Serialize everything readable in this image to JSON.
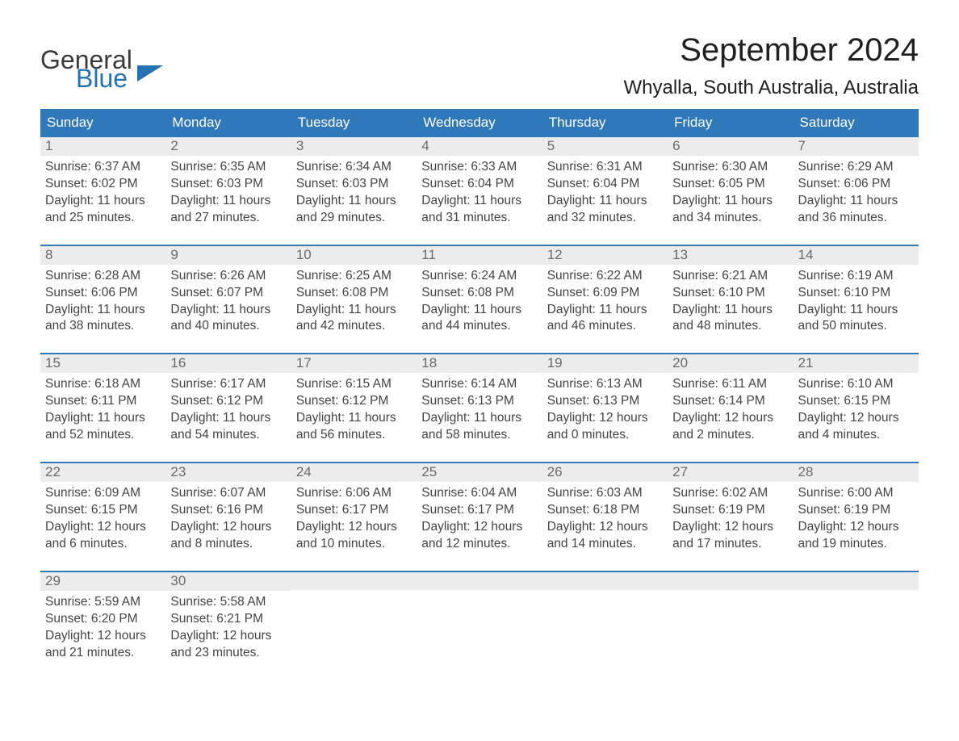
{
  "brand": {
    "name1": "General",
    "name2": "Blue",
    "color_dark": "#3a3a3a",
    "color_blue": "#2572b5"
  },
  "title": "September 2024",
  "location": "Whyalla, South Australia, Australia",
  "colors": {
    "header_bg": "#2f78ba",
    "header_text": "#ffffff",
    "daynum_bg": "#ececec",
    "daynum_text": "#6a6a6a",
    "border_top": "#2f78ba",
    "body_text": "#444444",
    "page_bg": "#ffffff"
  },
  "fonts": {
    "title_size": 40,
    "location_size": 24,
    "dayheader_size": 17,
    "daynum_size": 17,
    "body_size": 15.5
  },
  "day_labels": [
    "Sunday",
    "Monday",
    "Tuesday",
    "Wednesday",
    "Thursday",
    "Friday",
    "Saturday"
  ],
  "weeks": [
    [
      {
        "n": "1",
        "sr": "Sunrise: 6:37 AM",
        "ss": "Sunset: 6:02 PM",
        "d1": "Daylight: 11 hours",
        "d2": "and 25 minutes."
      },
      {
        "n": "2",
        "sr": "Sunrise: 6:35 AM",
        "ss": "Sunset: 6:03 PM",
        "d1": "Daylight: 11 hours",
        "d2": "and 27 minutes."
      },
      {
        "n": "3",
        "sr": "Sunrise: 6:34 AM",
        "ss": "Sunset: 6:03 PM",
        "d1": "Daylight: 11 hours",
        "d2": "and 29 minutes."
      },
      {
        "n": "4",
        "sr": "Sunrise: 6:33 AM",
        "ss": "Sunset: 6:04 PM",
        "d1": "Daylight: 11 hours",
        "d2": "and 31 minutes."
      },
      {
        "n": "5",
        "sr": "Sunrise: 6:31 AM",
        "ss": "Sunset: 6:04 PM",
        "d1": "Daylight: 11 hours",
        "d2": "and 32 minutes."
      },
      {
        "n": "6",
        "sr": "Sunrise: 6:30 AM",
        "ss": "Sunset: 6:05 PM",
        "d1": "Daylight: 11 hours",
        "d2": "and 34 minutes."
      },
      {
        "n": "7",
        "sr": "Sunrise: 6:29 AM",
        "ss": "Sunset: 6:06 PM",
        "d1": "Daylight: 11 hours",
        "d2": "and 36 minutes."
      }
    ],
    [
      {
        "n": "8",
        "sr": "Sunrise: 6:28 AM",
        "ss": "Sunset: 6:06 PM",
        "d1": "Daylight: 11 hours",
        "d2": "and 38 minutes."
      },
      {
        "n": "9",
        "sr": "Sunrise: 6:26 AM",
        "ss": "Sunset: 6:07 PM",
        "d1": "Daylight: 11 hours",
        "d2": "and 40 minutes."
      },
      {
        "n": "10",
        "sr": "Sunrise: 6:25 AM",
        "ss": "Sunset: 6:08 PM",
        "d1": "Daylight: 11 hours",
        "d2": "and 42 minutes."
      },
      {
        "n": "11",
        "sr": "Sunrise: 6:24 AM",
        "ss": "Sunset: 6:08 PM",
        "d1": "Daylight: 11 hours",
        "d2": "and 44 minutes."
      },
      {
        "n": "12",
        "sr": "Sunrise: 6:22 AM",
        "ss": "Sunset: 6:09 PM",
        "d1": "Daylight: 11 hours",
        "d2": "and 46 minutes."
      },
      {
        "n": "13",
        "sr": "Sunrise: 6:21 AM",
        "ss": "Sunset: 6:10 PM",
        "d1": "Daylight: 11 hours",
        "d2": "and 48 minutes."
      },
      {
        "n": "14",
        "sr": "Sunrise: 6:19 AM",
        "ss": "Sunset: 6:10 PM",
        "d1": "Daylight: 11 hours",
        "d2": "and 50 minutes."
      }
    ],
    [
      {
        "n": "15",
        "sr": "Sunrise: 6:18 AM",
        "ss": "Sunset: 6:11 PM",
        "d1": "Daylight: 11 hours",
        "d2": "and 52 minutes."
      },
      {
        "n": "16",
        "sr": "Sunrise: 6:17 AM",
        "ss": "Sunset: 6:12 PM",
        "d1": "Daylight: 11 hours",
        "d2": "and 54 minutes."
      },
      {
        "n": "17",
        "sr": "Sunrise: 6:15 AM",
        "ss": "Sunset: 6:12 PM",
        "d1": "Daylight: 11 hours",
        "d2": "and 56 minutes."
      },
      {
        "n": "18",
        "sr": "Sunrise: 6:14 AM",
        "ss": "Sunset: 6:13 PM",
        "d1": "Daylight: 11 hours",
        "d2": "and 58 minutes."
      },
      {
        "n": "19",
        "sr": "Sunrise: 6:13 AM",
        "ss": "Sunset: 6:13 PM",
        "d1": "Daylight: 12 hours",
        "d2": "and 0 minutes."
      },
      {
        "n": "20",
        "sr": "Sunrise: 6:11 AM",
        "ss": "Sunset: 6:14 PM",
        "d1": "Daylight: 12 hours",
        "d2": "and 2 minutes."
      },
      {
        "n": "21",
        "sr": "Sunrise: 6:10 AM",
        "ss": "Sunset: 6:15 PM",
        "d1": "Daylight: 12 hours",
        "d2": "and 4 minutes."
      }
    ],
    [
      {
        "n": "22",
        "sr": "Sunrise: 6:09 AM",
        "ss": "Sunset: 6:15 PM",
        "d1": "Daylight: 12 hours",
        "d2": "and 6 minutes."
      },
      {
        "n": "23",
        "sr": "Sunrise: 6:07 AM",
        "ss": "Sunset: 6:16 PM",
        "d1": "Daylight: 12 hours",
        "d2": "and 8 minutes."
      },
      {
        "n": "24",
        "sr": "Sunrise: 6:06 AM",
        "ss": "Sunset: 6:17 PM",
        "d1": "Daylight: 12 hours",
        "d2": "and 10 minutes."
      },
      {
        "n": "25",
        "sr": "Sunrise: 6:04 AM",
        "ss": "Sunset: 6:17 PM",
        "d1": "Daylight: 12 hours",
        "d2": "and 12 minutes."
      },
      {
        "n": "26",
        "sr": "Sunrise: 6:03 AM",
        "ss": "Sunset: 6:18 PM",
        "d1": "Daylight: 12 hours",
        "d2": "and 14 minutes."
      },
      {
        "n": "27",
        "sr": "Sunrise: 6:02 AM",
        "ss": "Sunset: 6:19 PM",
        "d1": "Daylight: 12 hours",
        "d2": "and 17 minutes."
      },
      {
        "n": "28",
        "sr": "Sunrise: 6:00 AM",
        "ss": "Sunset: 6:19 PM",
        "d1": "Daylight: 12 hours",
        "d2": "and 19 minutes."
      }
    ],
    [
      {
        "n": "29",
        "sr": "Sunrise: 5:59 AM",
        "ss": "Sunset: 6:20 PM",
        "d1": "Daylight: 12 hours",
        "d2": "and 21 minutes."
      },
      {
        "n": "30",
        "sr": "Sunrise: 5:58 AM",
        "ss": "Sunset: 6:21 PM",
        "d1": "Daylight: 12 hours",
        "d2": "and 23 minutes."
      },
      null,
      null,
      null,
      null,
      null
    ]
  ]
}
